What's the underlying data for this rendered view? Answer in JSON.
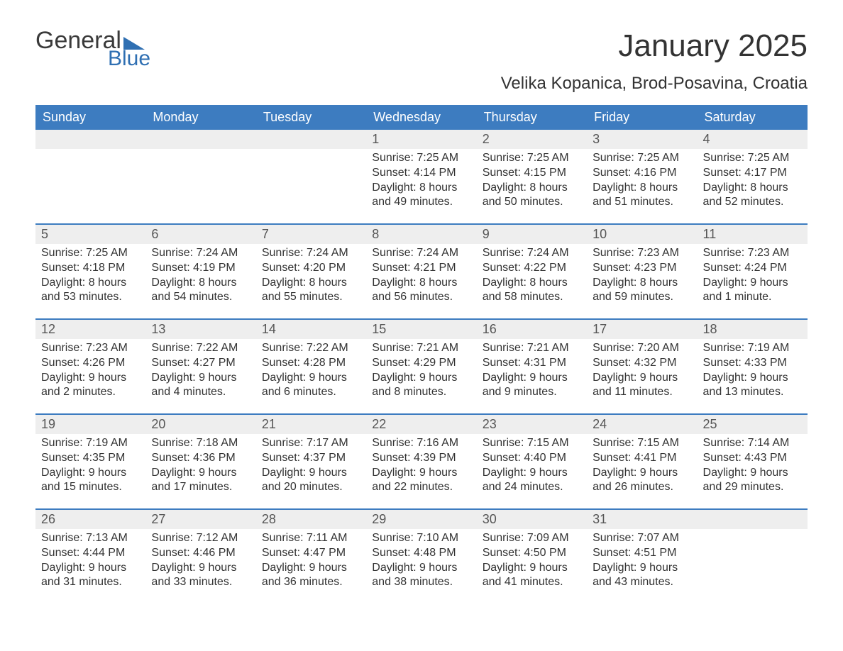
{
  "logo": {
    "word1": "General",
    "word2": "Blue",
    "flag_color": "#2f6fb2"
  },
  "title": "January 2025",
  "location": "Velika Kopanica, Brod-Posavina, Croatia",
  "colors": {
    "header_bg": "#3d7cc0",
    "header_text": "#ffffff",
    "daynum_bg": "#eeeeee",
    "week_border": "#3d7cc0",
    "body_text": "#333333"
  },
  "day_headers": [
    "Sunday",
    "Monday",
    "Tuesday",
    "Wednesday",
    "Thursday",
    "Friday",
    "Saturday"
  ],
  "weeks": [
    [
      {
        "blank": true
      },
      {
        "blank": true
      },
      {
        "blank": true
      },
      {
        "n": "1",
        "sunrise": "Sunrise: 7:25 AM",
        "sunset": "Sunset: 4:14 PM",
        "d1": "Daylight: 8 hours",
        "d2": "and 49 minutes."
      },
      {
        "n": "2",
        "sunrise": "Sunrise: 7:25 AM",
        "sunset": "Sunset: 4:15 PM",
        "d1": "Daylight: 8 hours",
        "d2": "and 50 minutes."
      },
      {
        "n": "3",
        "sunrise": "Sunrise: 7:25 AM",
        "sunset": "Sunset: 4:16 PM",
        "d1": "Daylight: 8 hours",
        "d2": "and 51 minutes."
      },
      {
        "n": "4",
        "sunrise": "Sunrise: 7:25 AM",
        "sunset": "Sunset: 4:17 PM",
        "d1": "Daylight: 8 hours",
        "d2": "and 52 minutes."
      }
    ],
    [
      {
        "n": "5",
        "sunrise": "Sunrise: 7:25 AM",
        "sunset": "Sunset: 4:18 PM",
        "d1": "Daylight: 8 hours",
        "d2": "and 53 minutes."
      },
      {
        "n": "6",
        "sunrise": "Sunrise: 7:24 AM",
        "sunset": "Sunset: 4:19 PM",
        "d1": "Daylight: 8 hours",
        "d2": "and 54 minutes."
      },
      {
        "n": "7",
        "sunrise": "Sunrise: 7:24 AM",
        "sunset": "Sunset: 4:20 PM",
        "d1": "Daylight: 8 hours",
        "d2": "and 55 minutes."
      },
      {
        "n": "8",
        "sunrise": "Sunrise: 7:24 AM",
        "sunset": "Sunset: 4:21 PM",
        "d1": "Daylight: 8 hours",
        "d2": "and 56 minutes."
      },
      {
        "n": "9",
        "sunrise": "Sunrise: 7:24 AM",
        "sunset": "Sunset: 4:22 PM",
        "d1": "Daylight: 8 hours",
        "d2": "and 58 minutes."
      },
      {
        "n": "10",
        "sunrise": "Sunrise: 7:23 AM",
        "sunset": "Sunset: 4:23 PM",
        "d1": "Daylight: 8 hours",
        "d2": "and 59 minutes."
      },
      {
        "n": "11",
        "sunrise": "Sunrise: 7:23 AM",
        "sunset": "Sunset: 4:24 PM",
        "d1": "Daylight: 9 hours",
        "d2": "and 1 minute."
      }
    ],
    [
      {
        "n": "12",
        "sunrise": "Sunrise: 7:23 AM",
        "sunset": "Sunset: 4:26 PM",
        "d1": "Daylight: 9 hours",
        "d2": "and 2 minutes."
      },
      {
        "n": "13",
        "sunrise": "Sunrise: 7:22 AM",
        "sunset": "Sunset: 4:27 PM",
        "d1": "Daylight: 9 hours",
        "d2": "and 4 minutes."
      },
      {
        "n": "14",
        "sunrise": "Sunrise: 7:22 AM",
        "sunset": "Sunset: 4:28 PM",
        "d1": "Daylight: 9 hours",
        "d2": "and 6 minutes."
      },
      {
        "n": "15",
        "sunrise": "Sunrise: 7:21 AM",
        "sunset": "Sunset: 4:29 PM",
        "d1": "Daylight: 9 hours",
        "d2": "and 8 minutes."
      },
      {
        "n": "16",
        "sunrise": "Sunrise: 7:21 AM",
        "sunset": "Sunset: 4:31 PM",
        "d1": "Daylight: 9 hours",
        "d2": "and 9 minutes."
      },
      {
        "n": "17",
        "sunrise": "Sunrise: 7:20 AM",
        "sunset": "Sunset: 4:32 PM",
        "d1": "Daylight: 9 hours",
        "d2": "and 11 minutes."
      },
      {
        "n": "18",
        "sunrise": "Sunrise: 7:19 AM",
        "sunset": "Sunset: 4:33 PM",
        "d1": "Daylight: 9 hours",
        "d2": "and 13 minutes."
      }
    ],
    [
      {
        "n": "19",
        "sunrise": "Sunrise: 7:19 AM",
        "sunset": "Sunset: 4:35 PM",
        "d1": "Daylight: 9 hours",
        "d2": "and 15 minutes."
      },
      {
        "n": "20",
        "sunrise": "Sunrise: 7:18 AM",
        "sunset": "Sunset: 4:36 PM",
        "d1": "Daylight: 9 hours",
        "d2": "and 17 minutes."
      },
      {
        "n": "21",
        "sunrise": "Sunrise: 7:17 AM",
        "sunset": "Sunset: 4:37 PM",
        "d1": "Daylight: 9 hours",
        "d2": "and 20 minutes."
      },
      {
        "n": "22",
        "sunrise": "Sunrise: 7:16 AM",
        "sunset": "Sunset: 4:39 PM",
        "d1": "Daylight: 9 hours",
        "d2": "and 22 minutes."
      },
      {
        "n": "23",
        "sunrise": "Sunrise: 7:15 AM",
        "sunset": "Sunset: 4:40 PM",
        "d1": "Daylight: 9 hours",
        "d2": "and 24 minutes."
      },
      {
        "n": "24",
        "sunrise": "Sunrise: 7:15 AM",
        "sunset": "Sunset: 4:41 PM",
        "d1": "Daylight: 9 hours",
        "d2": "and 26 minutes."
      },
      {
        "n": "25",
        "sunrise": "Sunrise: 7:14 AM",
        "sunset": "Sunset: 4:43 PM",
        "d1": "Daylight: 9 hours",
        "d2": "and 29 minutes."
      }
    ],
    [
      {
        "n": "26",
        "sunrise": "Sunrise: 7:13 AM",
        "sunset": "Sunset: 4:44 PM",
        "d1": "Daylight: 9 hours",
        "d2": "and 31 minutes."
      },
      {
        "n": "27",
        "sunrise": "Sunrise: 7:12 AM",
        "sunset": "Sunset: 4:46 PM",
        "d1": "Daylight: 9 hours",
        "d2": "and 33 minutes."
      },
      {
        "n": "28",
        "sunrise": "Sunrise: 7:11 AM",
        "sunset": "Sunset: 4:47 PM",
        "d1": "Daylight: 9 hours",
        "d2": "and 36 minutes."
      },
      {
        "n": "29",
        "sunrise": "Sunrise: 7:10 AM",
        "sunset": "Sunset: 4:48 PM",
        "d1": "Daylight: 9 hours",
        "d2": "and 38 minutes."
      },
      {
        "n": "30",
        "sunrise": "Sunrise: 7:09 AM",
        "sunset": "Sunset: 4:50 PM",
        "d1": "Daylight: 9 hours",
        "d2": "and 41 minutes."
      },
      {
        "n": "31",
        "sunrise": "Sunrise: 7:07 AM",
        "sunset": "Sunset: 4:51 PM",
        "d1": "Daylight: 9 hours",
        "d2": "and 43 minutes."
      },
      {
        "blank": true
      }
    ]
  ]
}
